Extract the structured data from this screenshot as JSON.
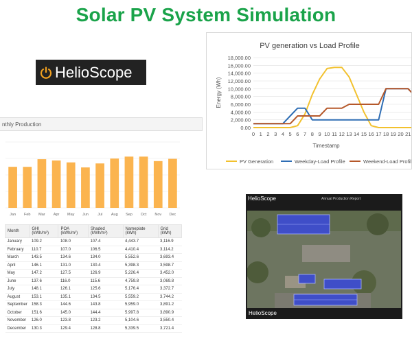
{
  "title": "Solar PV System Simulation",
  "logo": {
    "text": "HelioScope",
    "icon": "power-icon"
  },
  "monthly": {
    "header": "nthly Production",
    "bar_color": "#fbb44f",
    "columns": [
      "Month",
      "GHI (kWh/m²)",
      "POA (kWh/m²)",
      "Shaded (kWh/m²)",
      "Nameplate (kWh)",
      "Grid (kWh)"
    ],
    "rows": [
      [
        "January",
        "109.2",
        "108.0",
        "107.4",
        "4,443.7",
        "3,116.9"
      ],
      [
        "February",
        "110.7",
        "107.0",
        "106.5",
        "4,410.4",
        "3,114.2"
      ],
      [
        "March",
        "143.5",
        "134.6",
        "134.0",
        "5,552.6",
        "3,693.4"
      ],
      [
        "April",
        "146.1",
        "131.0",
        "130.4",
        "5,398.3",
        "3,598.7"
      ],
      [
        "May",
        "147.2",
        "127.5",
        "126.9",
        "5,226.4",
        "3,452.0"
      ],
      [
        "June",
        "137.6",
        "116.0",
        "115.6",
        "4,759.8",
        "3,069.8"
      ],
      [
        "July",
        "148.1",
        "126.1",
        "125.6",
        "5,176.4",
        "3,372.7"
      ],
      [
        "August",
        "153.1",
        "135.1",
        "134.5",
        "5,559.2",
        "3,744.2"
      ],
      [
        "September",
        "158.3",
        "144.6",
        "143.8",
        "5,959.0",
        "3,891.2"
      ],
      [
        "October",
        "151.6",
        "145.0",
        "144.4",
        "5,997.8",
        "3,890.9"
      ],
      [
        "November",
        "126.0",
        "123.8",
        "123.2",
        "5,104.6",
        "3,550.4"
      ],
      [
        "December",
        "130.3",
        "129.4",
        "128.8",
        "5,339.5",
        "3,721.4"
      ]
    ]
  },
  "chart_data": [
    {
      "type": "bar",
      "categories": [
        "Jan",
        "Feb",
        "Mar",
        "Apr",
        "May",
        "Jun",
        "Jul",
        "Aug",
        "Sep",
        "Oct",
        "Nov",
        "Dec"
      ],
      "values": [
        3116.9,
        3114.2,
        3693.4,
        3598.7,
        3452.0,
        3069.8,
        3372.7,
        3744.2,
        3891.2,
        3890.9,
        3550.4,
        3721.4
      ],
      "ylim": [
        0,
        5000
      ],
      "grid": true
    },
    {
      "type": "line",
      "title": "PV generation vs Load Profile",
      "xlabel": "Timestamp",
      "ylabel": "Energy (Wh)",
      "x": [
        0,
        1,
        2,
        3,
        4,
        5,
        6,
        7,
        8,
        9,
        10,
        11,
        12,
        13,
        14,
        15,
        16,
        17,
        18,
        19,
        20,
        21,
        22
      ],
      "xticks": [
        "0",
        "1",
        "2",
        "3",
        "4",
        "5",
        "6",
        "7",
        "8",
        "9",
        "10",
        "11",
        "12",
        "13",
        "14",
        "15",
        "16",
        "17",
        "18",
        "19",
        "20",
        "21"
      ],
      "yticks": [
        "0.00",
        "2,000.00",
        "4,000.00",
        "6,000.00",
        "8,000.00",
        "10,000.00",
        "12,000.00",
        "14,000.00",
        "16,000.00",
        "18,000.00"
      ],
      "ylim": [
        0,
        18000
      ],
      "legend_position": "bottom",
      "series": [
        {
          "name": "PV Generation",
          "color": "#f2c12e",
          "values": [
            0,
            0,
            0,
            0,
            0,
            0,
            500,
            3500,
            8500,
            12500,
            15200,
            15500,
            15500,
            13000,
            8500,
            4000,
            500,
            0,
            0,
            0,
            0,
            0,
            0
          ]
        },
        {
          "name": "Weekday-Load Profile",
          "color": "#2e6db4",
          "values": [
            1000,
            1000,
            1000,
            1000,
            1000,
            3000,
            5000,
            5000,
            2000,
            2000,
            2000,
            2000,
            2000,
            2000,
            2000,
            2000,
            2000,
            2000,
            10000,
            10000,
            10000,
            10000,
            8000
          ]
        },
        {
          "name": "Weekend-Load Profile",
          "color": "#b5582a",
          "values": [
            1000,
            1000,
            1000,
            1000,
            1000,
            1000,
            3000,
            3000,
            3000,
            3000,
            5000,
            5000,
            5000,
            6000,
            6000,
            6000,
            6000,
            6000,
            10000,
            10000,
            10000,
            10000,
            8000
          ]
        }
      ]
    }
  ],
  "map": {
    "logo": "HelioScope",
    "report_title": "Annual Production Report",
    "bottom_logo": "HelioScope"
  }
}
